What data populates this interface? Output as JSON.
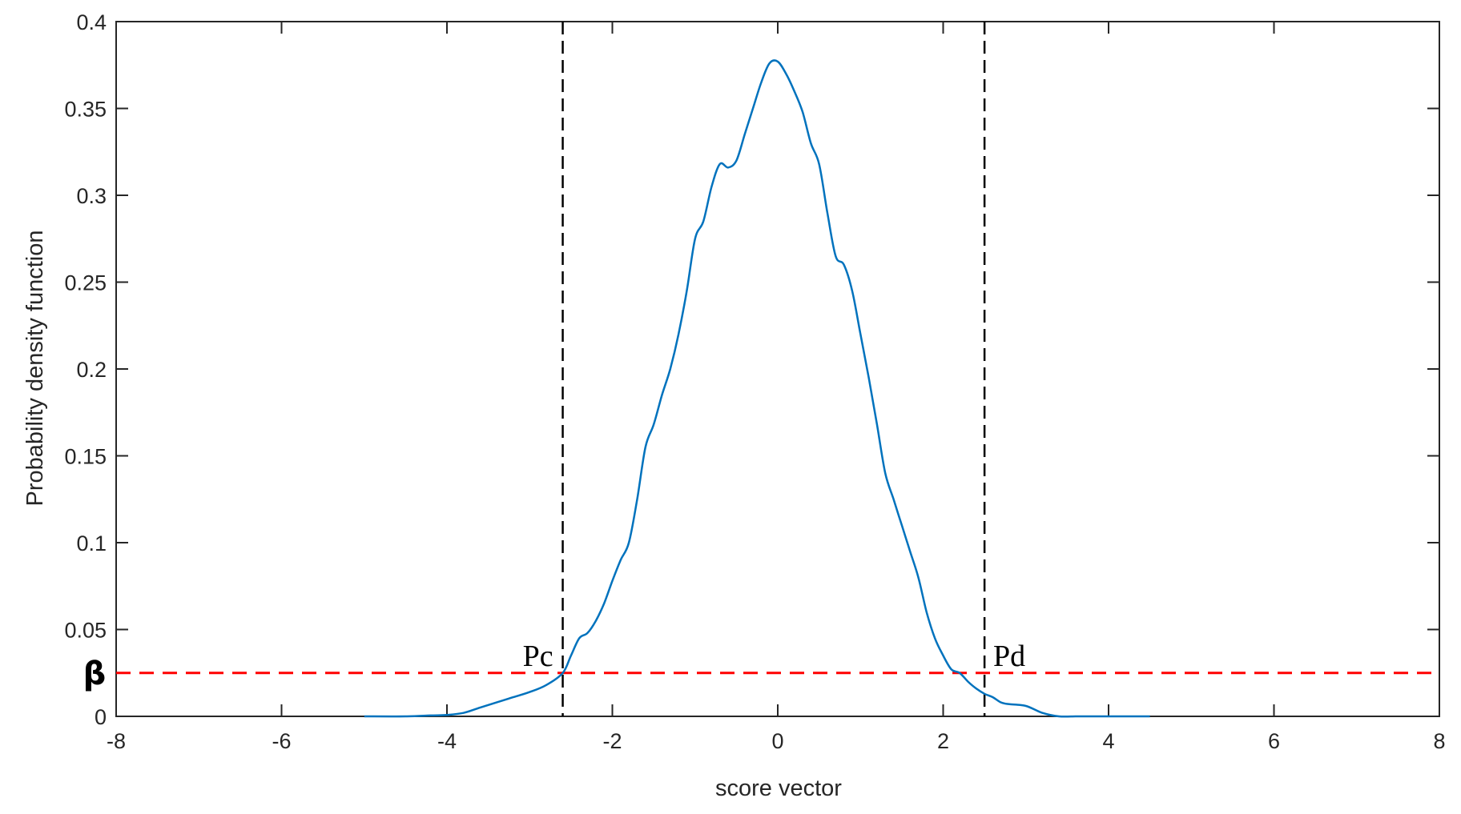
{
  "chart_data": {
    "type": "line",
    "title": "",
    "xlabel": "score vector",
    "ylabel": "Probability  density  function",
    "xlim": [
      -8,
      8
    ],
    "ylim": [
      0,
      0.4
    ],
    "x_ticks": [
      -8,
      -6,
      -4,
      -2,
      0,
      2,
      4,
      6,
      8
    ],
    "x_tick_labels": [
      "-8",
      "-6",
      "-4",
      "-2",
      "0",
      "2",
      "4",
      "6",
      "8"
    ],
    "y_ticks": [
      0,
      0.05,
      0.1,
      0.15,
      0.2,
      0.25,
      0.3,
      0.35,
      0.4
    ],
    "y_tick_labels": [
      "0",
      "0.05",
      "0.1",
      "0.15",
      "0.2",
      "0.25",
      "0.3",
      "0.35",
      "0.4"
    ],
    "grid": false,
    "series": [
      {
        "color": "#0072BD",
        "x": [
          -5.0,
          -4.5,
          -4.2,
          -4.0,
          -3.8,
          -3.6,
          -3.4,
          -3.2,
          -3.0,
          -2.8,
          -2.6,
          -2.5,
          -2.4,
          -2.3,
          -2.2,
          -2.1,
          -2.0,
          -1.9,
          -1.8,
          -1.7,
          -1.6,
          -1.5,
          -1.4,
          -1.3,
          -1.2,
          -1.1,
          -1.0,
          -0.9,
          -0.8,
          -0.7,
          -0.6,
          -0.5,
          -0.4,
          -0.3,
          -0.2,
          -0.1,
          0.0,
          0.1,
          0.2,
          0.3,
          0.4,
          0.5,
          0.6,
          0.7,
          0.8,
          0.9,
          1.0,
          1.1,
          1.2,
          1.3,
          1.4,
          1.5,
          1.6,
          1.7,
          1.8,
          1.9,
          2.0,
          2.1,
          2.2,
          2.3,
          2.4,
          2.5,
          2.6,
          2.7,
          2.8,
          3.0,
          3.2,
          3.4,
          3.6,
          3.7,
          3.8,
          4.0,
          4.5
        ],
        "y": [
          0.0,
          0.0,
          0.0005,
          0.0008,
          0.002,
          0.005,
          0.008,
          0.011,
          0.014,
          0.018,
          0.025,
          0.035,
          0.045,
          0.048,
          0.055,
          0.065,
          0.078,
          0.09,
          0.1,
          0.125,
          0.155,
          0.168,
          0.185,
          0.2,
          0.22,
          0.245,
          0.275,
          0.285,
          0.305,
          0.318,
          0.316,
          0.32,
          0.335,
          0.35,
          0.365,
          0.376,
          0.377,
          0.37,
          0.36,
          0.348,
          0.33,
          0.318,
          0.29,
          0.265,
          0.26,
          0.245,
          0.22,
          0.195,
          0.168,
          0.14,
          0.125,
          0.11,
          0.095,
          0.08,
          0.06,
          0.045,
          0.035,
          0.027,
          0.025,
          0.02,
          0.016,
          0.013,
          0.011,
          0.008,
          0.007,
          0.006,
          0.002,
          0.0,
          0.0,
          0.0,
          0.0,
          0.0,
          0.0
        ]
      }
    ],
    "vlines": [
      {
        "x": -2.6,
        "style": "dashed",
        "color": "#000000"
      },
      {
        "x": 2.5,
        "style": "dashed",
        "color": "#000000"
      }
    ],
    "hlines": [
      {
        "y": 0.025,
        "style": "dashed",
        "color": "#FF0000"
      }
    ],
    "annotations": [
      {
        "text": "Pc",
        "x": -2.9,
        "y": 0.03
      },
      {
        "text": "Pd",
        "x": 2.8,
        "y": 0.03
      },
      {
        "text": "β",
        "on_axis": "y",
        "y": 0.025
      }
    ]
  }
}
